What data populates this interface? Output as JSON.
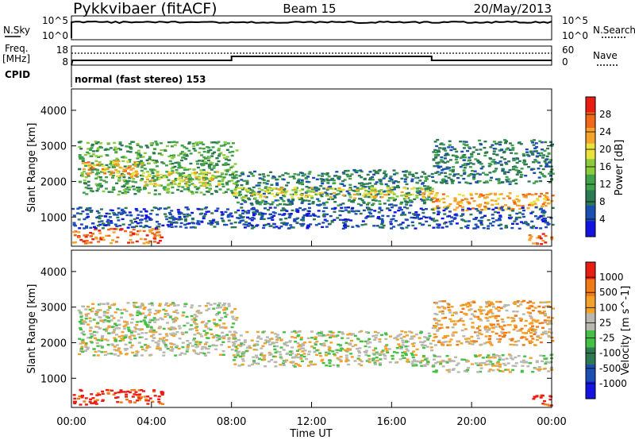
{
  "header": {
    "station": "Pykkvibaer (fitACF)",
    "beam": "Beam 15",
    "date": "20/May/2013"
  },
  "status_panels": {
    "nsky": {
      "label": "N.Sky",
      "ticks": [
        "10^5",
        "10^0"
      ],
      "right_label": "N.Search",
      "right_ticks": [
        "10^5",
        "10^0"
      ]
    },
    "freq": {
      "label": "Freq.",
      "unit": "[MHz]",
      "ticks": [
        "18",
        "8"
      ],
      "right_label": "Nave",
      "right_ticks": [
        "60",
        "0"
      ]
    },
    "cpid": {
      "label": "CPID",
      "value": "normal (fast stereo) 153"
    }
  },
  "colors": {
    "power_scale": [
      "#1414e0",
      "#1c4fb4",
      "#2d7a52",
      "#3fa24b",
      "#8ccc3c",
      "#e8e23a",
      "#f3a42a",
      "#f06818",
      "#e81e14"
    ],
    "velocity_scale": [
      "#1414e0",
      "#1c4fb4",
      "#2d7a52",
      "#44c044",
      "#b8b8b0",
      "#f2a22a",
      "#f07a16",
      "#e81e14"
    ],
    "ground_scatter": "#b8b8b0"
  },
  "chart_data": [
    {
      "type": "heatmap",
      "name": "power",
      "ylabel": "Slant Range [km]",
      "ylim": [
        180,
        4600
      ],
      "yticks": [
        "1000",
        "2000",
        "3000",
        "4000"
      ],
      "xlim": [
        0,
        24
      ],
      "colorbar": {
        "label": "Power [dB]",
        "ticks": [
          "28",
          "24",
          "20",
          "16",
          "12",
          "8",
          "4"
        ]
      },
      "bands": [
        {
          "x": [
            0.3,
            8.2
          ],
          "range_km": [
            1650,
            3150
          ],
          "level": 3
        },
        {
          "x": [
            0.5,
            3.5
          ],
          "range_km": [
            2150,
            2600
          ],
          "level": 6
        },
        {
          "x": [
            3.5,
            7.5
          ],
          "range_km": [
            1900,
            2300
          ],
          "level": 5
        },
        {
          "x": [
            8.0,
            18.0
          ],
          "range_km": [
            1350,
            2350
          ],
          "level": 2
        },
        {
          "x": [
            8.0,
            18.0
          ],
          "range_km": [
            1550,
            1850
          ],
          "level": 5
        },
        {
          "x": [
            18.0,
            24.0
          ],
          "range_km": [
            1200,
            1700
          ],
          "level": 6
        },
        {
          "x": [
            18.0,
            24.0
          ],
          "range_km": [
            1950,
            3200
          ],
          "level": 2
        },
        {
          "x": [
            0.0,
            4.5
          ],
          "range_km": [
            280,
            700
          ],
          "level": 7
        },
        {
          "x": [
            0.0,
            24.0
          ],
          "range_km": [
            700,
            1300
          ],
          "level": 1
        },
        {
          "x": [
            22.8,
            24.0
          ],
          "range_km": [
            250,
            550
          ],
          "level": 7
        }
      ]
    },
    {
      "type": "heatmap",
      "name": "velocity",
      "ylabel": "Slant Range [km]",
      "ylim": [
        180,
        4600
      ],
      "yticks": [
        "1000",
        "2000",
        "3000",
        "4000"
      ],
      "xlabel": "Time UT",
      "xticks": [
        "00:00",
        "04:00",
        "08:00",
        "12:00",
        "16:00",
        "20:00",
        "00:00"
      ],
      "xlim": [
        0,
        24
      ],
      "colorbar": {
        "label": "Velocity [m s^-1]",
        "ticks": [
          "1000",
          "500",
          "100",
          "25",
          "-25",
          "-100",
          "-500",
          "-1000"
        ]
      },
      "bands": [
        {
          "x": [
            0.3,
            8.2
          ],
          "range_km": [
            1650,
            3150
          ],
          "level": 4
        },
        {
          "x": [
            8.0,
            18.0
          ],
          "range_km": [
            1350,
            2350
          ],
          "level": 4
        },
        {
          "x": [
            18.0,
            24.0
          ],
          "range_km": [
            1200,
            1700
          ],
          "level": 4
        },
        {
          "x": [
            18.0,
            24.0
          ],
          "range_km": [
            1950,
            3200
          ],
          "level": 5
        },
        {
          "x": [
            0.0,
            4.5
          ],
          "range_km": [
            280,
            700
          ],
          "level": 7
        },
        {
          "x": [
            22.8,
            24.0
          ],
          "range_km": [
            250,
            550
          ],
          "level": 7
        }
      ]
    }
  ]
}
